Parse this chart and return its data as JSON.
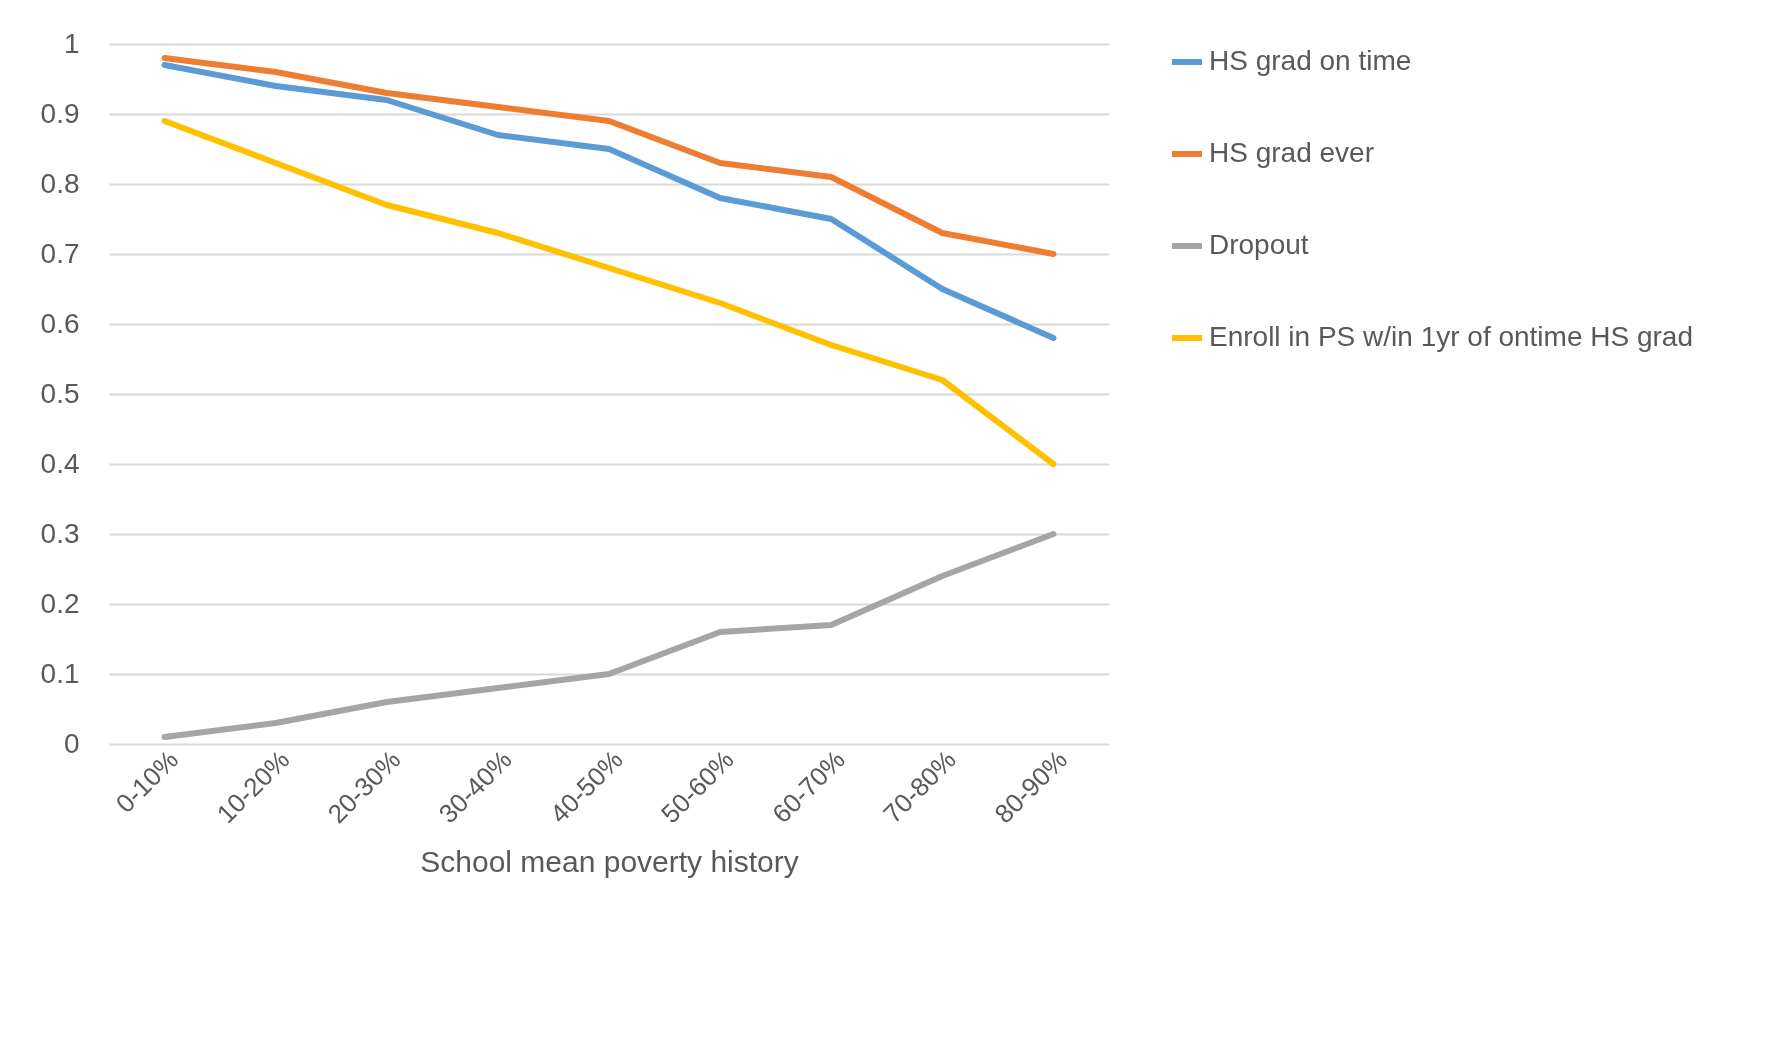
{
  "chart_data": {
    "type": "line",
    "xlabel": "School mean poverty  history",
    "categories": [
      "0-10%",
      "10-20%",
      "20-30%",
      "30-40%",
      "40-50%",
      "50-60%",
      "60-70%",
      "70-80%",
      "80-90%"
    ],
    "series": [
      {
        "name": "HS grad on time",
        "color": "#5b9bd5",
        "values": [
          0.97,
          0.94,
          0.92,
          0.87,
          0.85,
          0.78,
          0.75,
          0.65,
          0.58
        ]
      },
      {
        "name": "HS grad ever",
        "color": "#ed7d31",
        "values": [
          0.98,
          0.96,
          0.93,
          0.91,
          0.89,
          0.83,
          0.81,
          0.73,
          0.7
        ]
      },
      {
        "name": "Dropout",
        "color": "#a5a5a5",
        "values": [
          0.01,
          0.03,
          0.06,
          0.08,
          0.1,
          0.16,
          0.17,
          0.24,
          0.3
        ]
      },
      {
        "name": "Enroll in PS w/in 1yr of ontime HS grad",
        "color": "#ffc000",
        "values": [
          0.89,
          0.83,
          0.77,
          0.73,
          0.68,
          0.63,
          0.57,
          0.52,
          0.4
        ]
      }
    ],
    "ylim": [
      0,
      1
    ],
    "yticks": [
      0,
      0.1,
      0.2,
      0.3,
      0.4,
      0.5,
      0.6,
      0.7,
      0.8,
      0.9,
      1
    ],
    "grid": "y",
    "legend": "right",
    "marker": "none",
    "line_style": "solid"
  }
}
